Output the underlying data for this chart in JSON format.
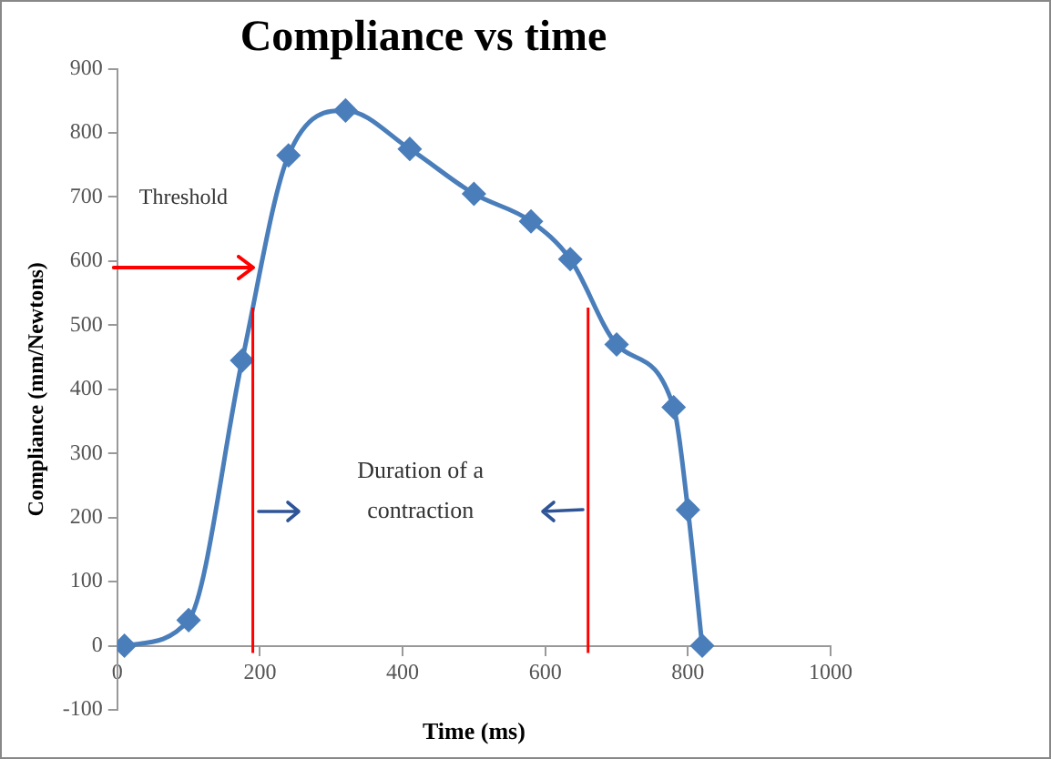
{
  "chart_data": {
    "type": "line",
    "title": "Compliance vs time",
    "xlabel": "Time (ms)",
    "ylabel": "Compliance (mm/Newtons)",
    "x": [
      10,
      100,
      175,
      240,
      320,
      410,
      500,
      580,
      635,
      700,
      780,
      800,
      820
    ],
    "series": [
      {
        "color": "#4a7ebb",
        "values": [
          0,
          40,
          445,
          765,
          835,
          775,
          705,
          662,
          603,
          470,
          372,
          212,
          0
        ]
      }
    ],
    "xlim": [
      0,
      1000
    ],
    "xticks": [
      0,
      200,
      400,
      600,
      800,
      1000
    ],
    "ylim": [
      -100,
      900
    ],
    "yticks": [
      -100,
      0,
      100,
      200,
      300,
      400,
      500,
      600,
      700,
      800,
      900
    ],
    "grid": false,
    "legend": false,
    "marker": "diamond",
    "line_style": "solid",
    "ref_lines": [
      {
        "axis": "y",
        "value": 590,
        "label": "Threshold",
        "color": "#ff0000"
      },
      {
        "axis": "x",
        "value": 190,
        "color": "#ff0000"
      },
      {
        "axis": "x",
        "value": 660,
        "color": "#ff0000"
      }
    ],
    "annotations": [
      "Duration of a contraction"
    ]
  }
}
